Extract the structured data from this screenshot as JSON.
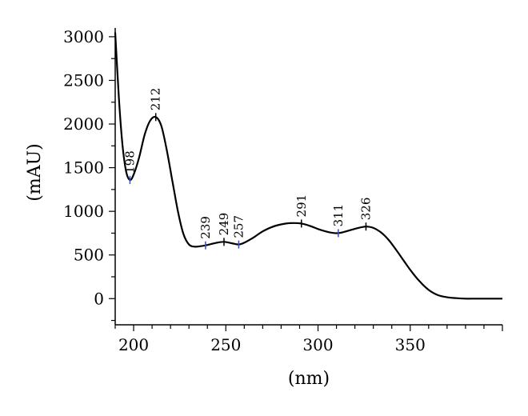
{
  "chart_data": {
    "type": "line",
    "xlabel": "(nm)",
    "ylabel": "(mAU)",
    "xlim": [
      190,
      400
    ],
    "ylim": [
      -300,
      3100
    ],
    "x_ticks": [
      200,
      250,
      300,
      350
    ],
    "y_ticks": [
      0,
      500,
      1000,
      1500,
      2000,
      2500,
      3000
    ],
    "grid": false,
    "series": [
      {
        "x": [
          190,
          192,
          194,
          196,
          198,
          200,
          203,
          206,
          209,
          212,
          215,
          218,
          221,
          224,
          227,
          230,
          233,
          236,
          239,
          242,
          245,
          249,
          253,
          257,
          260,
          265,
          270,
          275,
          280,
          285,
          291,
          296,
          301,
          306,
          311,
          316,
          321,
          326,
          330,
          334,
          338,
          342,
          346,
          350,
          355,
          360,
          365,
          370,
          375,
          380,
          385,
          390,
          395,
          400
        ],
        "y": [
          3050,
          2300,
          1750,
          1450,
          1360,
          1420,
          1620,
          1880,
          2040,
          2080,
          1980,
          1700,
          1350,
          1000,
          740,
          620,
          595,
          600,
          610,
          625,
          640,
          650,
          635,
          620,
          640,
          700,
          770,
          820,
          850,
          865,
          860,
          830,
          790,
          760,
          750,
          775,
          805,
          825,
          810,
          760,
          680,
          570,
          450,
          330,
          200,
          100,
          40,
          15,
          5,
          0,
          0,
          0,
          0,
          0
        ]
      }
    ],
    "peak_labels": [
      {
        "x": 198,
        "y": 1360,
        "text": "198",
        "kind": "valley"
      },
      {
        "x": 212,
        "y": 2080,
        "text": "212",
        "kind": "peak"
      },
      {
        "x": 239,
        "y": 610,
        "text": "239",
        "kind": "valley"
      },
      {
        "x": 249,
        "y": 650,
        "text": "249",
        "kind": "peak"
      },
      {
        "x": 257,
        "y": 620,
        "text": "257",
        "kind": "valley"
      },
      {
        "x": 291,
        "y": 860,
        "text": "291",
        "kind": "peak"
      },
      {
        "x": 311,
        "y": 750,
        "text": "311",
        "kind": "valley"
      },
      {
        "x": 326,
        "y": 825,
        "text": "326",
        "kind": "peak"
      }
    ],
    "colors": {
      "line": "#000000",
      "peak_marker": "#000000",
      "valley_marker": "#3a4fb0"
    }
  }
}
